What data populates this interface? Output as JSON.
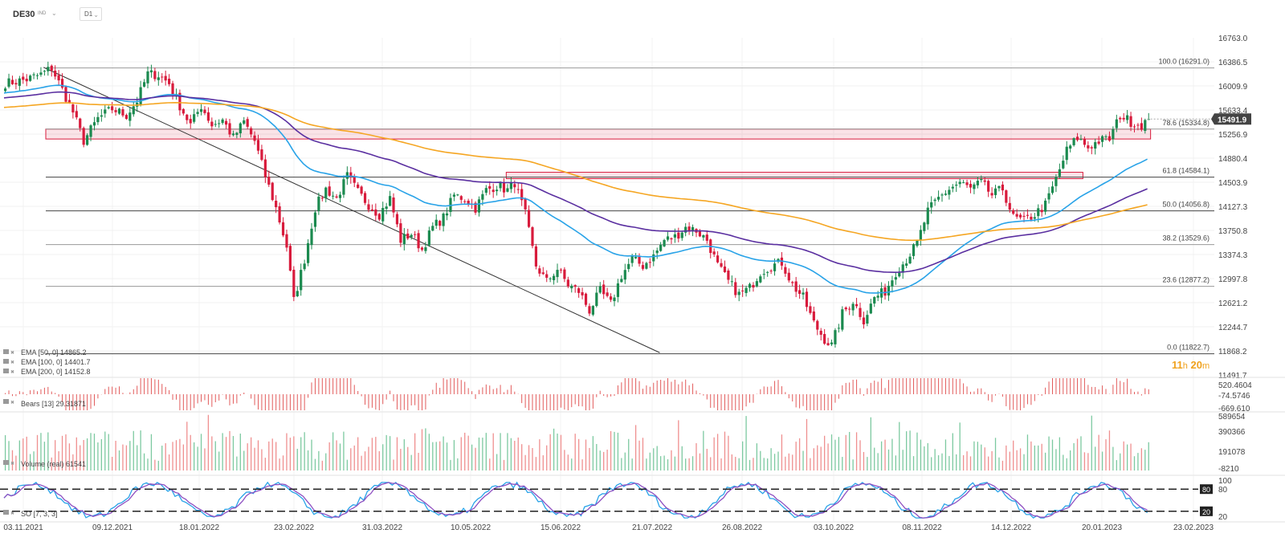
{
  "toolbar": {
    "symbol": "DE30",
    "symbol_type": "IND",
    "timeframe": "D1"
  },
  "countdown": {
    "hours": "11",
    "h": "h",
    "minutes": "20",
    "m": "m"
  },
  "chart_data": {
    "type": "candlestick",
    "title": "DE30",
    "timeframe": "D1",
    "x_tick_labels": [
      "03.11.2021",
      "09.12.2021",
      "18.01.2022",
      "23.02.2022",
      "31.03.2022",
      "10.05.2022",
      "15.06.2022",
      "21.07.2022",
      "26.08.2022",
      "03.10.2022",
      "08.11.2022",
      "14.12.2022",
      "20.01.2023",
      "23.02.2023"
    ],
    "y_tick_labels": [
      "16763.0",
      "16386.5",
      "16009.9",
      "15633.4",
      "15256.9",
      "14880.4",
      "14503.9",
      "14127.3",
      "13750.8",
      "13374.3",
      "12997.8",
      "12621.2",
      "12244.7",
      "11868.2",
      "11491.7"
    ],
    "ylim": [
      11491.7,
      16763.0
    ],
    "last_price": "15491.9",
    "last_price_value": 15491.9,
    "close_path": [
      [
        0,
        16050
      ],
      [
        6,
        16110
      ],
      [
        10,
        16190
      ],
      [
        13,
        16290
      ],
      [
        16,
        15950
      ],
      [
        19,
        15600
      ],
      [
        22,
        15150
      ],
      [
        26,
        15500
      ],
      [
        30,
        15650
      ],
      [
        34,
        15550
      ],
      [
        37,
        15780
      ],
      [
        40,
        16200
      ],
      [
        43,
        16180
      ],
      [
        46,
        16050
      ],
      [
        49,
        15700
      ],
      [
        52,
        15400
      ],
      [
        55,
        15700
      ],
      [
        58,
        15400
      ],
      [
        61,
        15480
      ],
      [
        64,
        15200
      ],
      [
        67,
        15450
      ],
      [
        70,
        15150
      ],
      [
        73,
        14600
      ],
      [
        76,
        14100
      ],
      [
        79,
        13500
      ],
      [
        81,
        12650
      ],
      [
        84,
        13300
      ],
      [
        87,
        14100
      ],
      [
        90,
        14400
      ],
      [
        93,
        14250
      ],
      [
        96,
        14600
      ],
      [
        99,
        14350
      ],
      [
        102,
        14150
      ],
      [
        105,
        14000
      ],
      [
        108,
        14250
      ],
      [
        111,
        13600
      ],
      [
        114,
        13700
      ],
      [
        117,
        13450
      ],
      [
        120,
        13800
      ],
      [
        123,
        13950
      ],
      [
        126,
        14300
      ],
      [
        129,
        14250
      ],
      [
        132,
        14100
      ],
      [
        135,
        14380
      ],
      [
        138,
        14450
      ],
      [
        141,
        14380
      ],
      [
        143,
        14500
      ],
      [
        146,
        14000
      ],
      [
        149,
        13200
      ],
      [
        152,
        12950
      ],
      [
        155,
        13150
      ],
      [
        158,
        12900
      ],
      [
        161,
        12800
      ],
      [
        164,
        12500
      ],
      [
        167,
        12800
      ],
      [
        170,
        12600
      ],
      [
        173,
        13050
      ],
      [
        176,
        13300
      ],
      [
        179,
        13200
      ],
      [
        182,
        13350
      ],
      [
        185,
        13600
      ],
      [
        188,
        13650
      ],
      [
        191,
        13800
      ],
      [
        194,
        13750
      ],
      [
        197,
        13600
      ],
      [
        200,
        13200
      ],
      [
        203,
        12950
      ],
      [
        206,
        12750
      ],
      [
        209,
        12850
      ],
      [
        212,
        13100
      ],
      [
        215,
        13200
      ],
      [
        218,
        13250
      ],
      [
        221,
        12900
      ],
      [
        224,
        12700
      ],
      [
        227,
        12300
      ],
      [
        230,
        12050
      ],
      [
        232,
        11950
      ],
      [
        235,
        12450
      ],
      [
        238,
        12650
      ],
      [
        241,
        12350
      ],
      [
        244,
        12700
      ],
      [
        247,
        12800
      ],
      [
        250,
        13100
      ],
      [
        253,
        13300
      ],
      [
        256,
        13550
      ],
      [
        259,
        14050
      ],
      [
        262,
        14250
      ],
      [
        265,
        14400
      ],
      [
        268,
        14500
      ],
      [
        271,
        14400
      ],
      [
        274,
        14500
      ],
      [
        277,
        14300
      ],
      [
        280,
        14400
      ],
      [
        283,
        13950
      ],
      [
        286,
        13900
      ],
      [
        289,
        14000
      ],
      [
        292,
        14150
      ],
      [
        295,
        14550
      ],
      [
        298,
        15000
      ],
      [
        301,
        15200
      ],
      [
        304,
        15050
      ],
      [
        307,
        15150
      ],
      [
        310,
        15180
      ],
      [
        313,
        15550
      ],
      [
        316,
        15450
      ],
      [
        319,
        15400
      ],
      [
        321,
        15491.9
      ]
    ],
    "fibonacci": [
      {
        "level": "100.0",
        "value": 16291.0,
        "label": "100.0 (16291.0)"
      },
      {
        "level": "78.6",
        "value": 15334.8,
        "label": "78.6 (15334.8)"
      },
      {
        "level": "61.8",
        "value": 14584.1,
        "label": "61.8 (14584.1)"
      },
      {
        "level": "50.0",
        "value": 14056.8,
        "label": "50.0 (14056.8)"
      },
      {
        "level": "38.2",
        "value": 13529.6,
        "label": "38.2 (13529.6)"
      },
      {
        "level": "23.6",
        "value": 12877.2,
        "label": "23.6 (12877.2)"
      },
      {
        "level": "0.0",
        "value": 11822.7,
        "label": "0.0 (11822.7)"
      }
    ],
    "zones": [
      {
        "from_bar": 0,
        "to_bar": 321,
        "low": 15180,
        "high": 15334.8,
        "color": "#d81b3c"
      },
      {
        "from_bar": 141,
        "to_bar": 302,
        "low": 14560,
        "high": 14660,
        "color": "#d81b3c"
      }
    ],
    "trendline": {
      "from": [
        12,
        16300
      ],
      "to": [
        185,
        11840
      ]
    },
    "indicators": [
      {
        "label": "EMA [50, 0] 14865.2",
        "period": 50,
        "last": 14865.2,
        "color": "#29a3e8"
      },
      {
        "label": "EMA [100, 0] 14401.7",
        "period": 100,
        "last": 14401.7,
        "color": "#5a2fa0"
      },
      {
        "label": "EMA [200, 0] 14152.8",
        "period": 200,
        "last": 14152.8,
        "color": "#f5a623"
      }
    ],
    "bears": {
      "label": "Bears [13] 29.31871",
      "y_tick_labels": [
        "520.4604",
        "-74.5746",
        "-669.610"
      ]
    },
    "volume": {
      "label": "Volume (real) 61541",
      "y_tick_labels": [
        "589654",
        "390366",
        "191078",
        "-8210"
      ]
    },
    "stochastic": {
      "label": "SO [7, 3, 3]",
      "y_tick_labels": [
        "100",
        "80",
        "20"
      ],
      "levels": [
        "80",
        "20"
      ]
    },
    "colors": {
      "up": "#1b8a4f",
      "down": "#d81b3c",
      "background": "#ffffff",
      "grid": "#e6e6e6"
    }
  }
}
